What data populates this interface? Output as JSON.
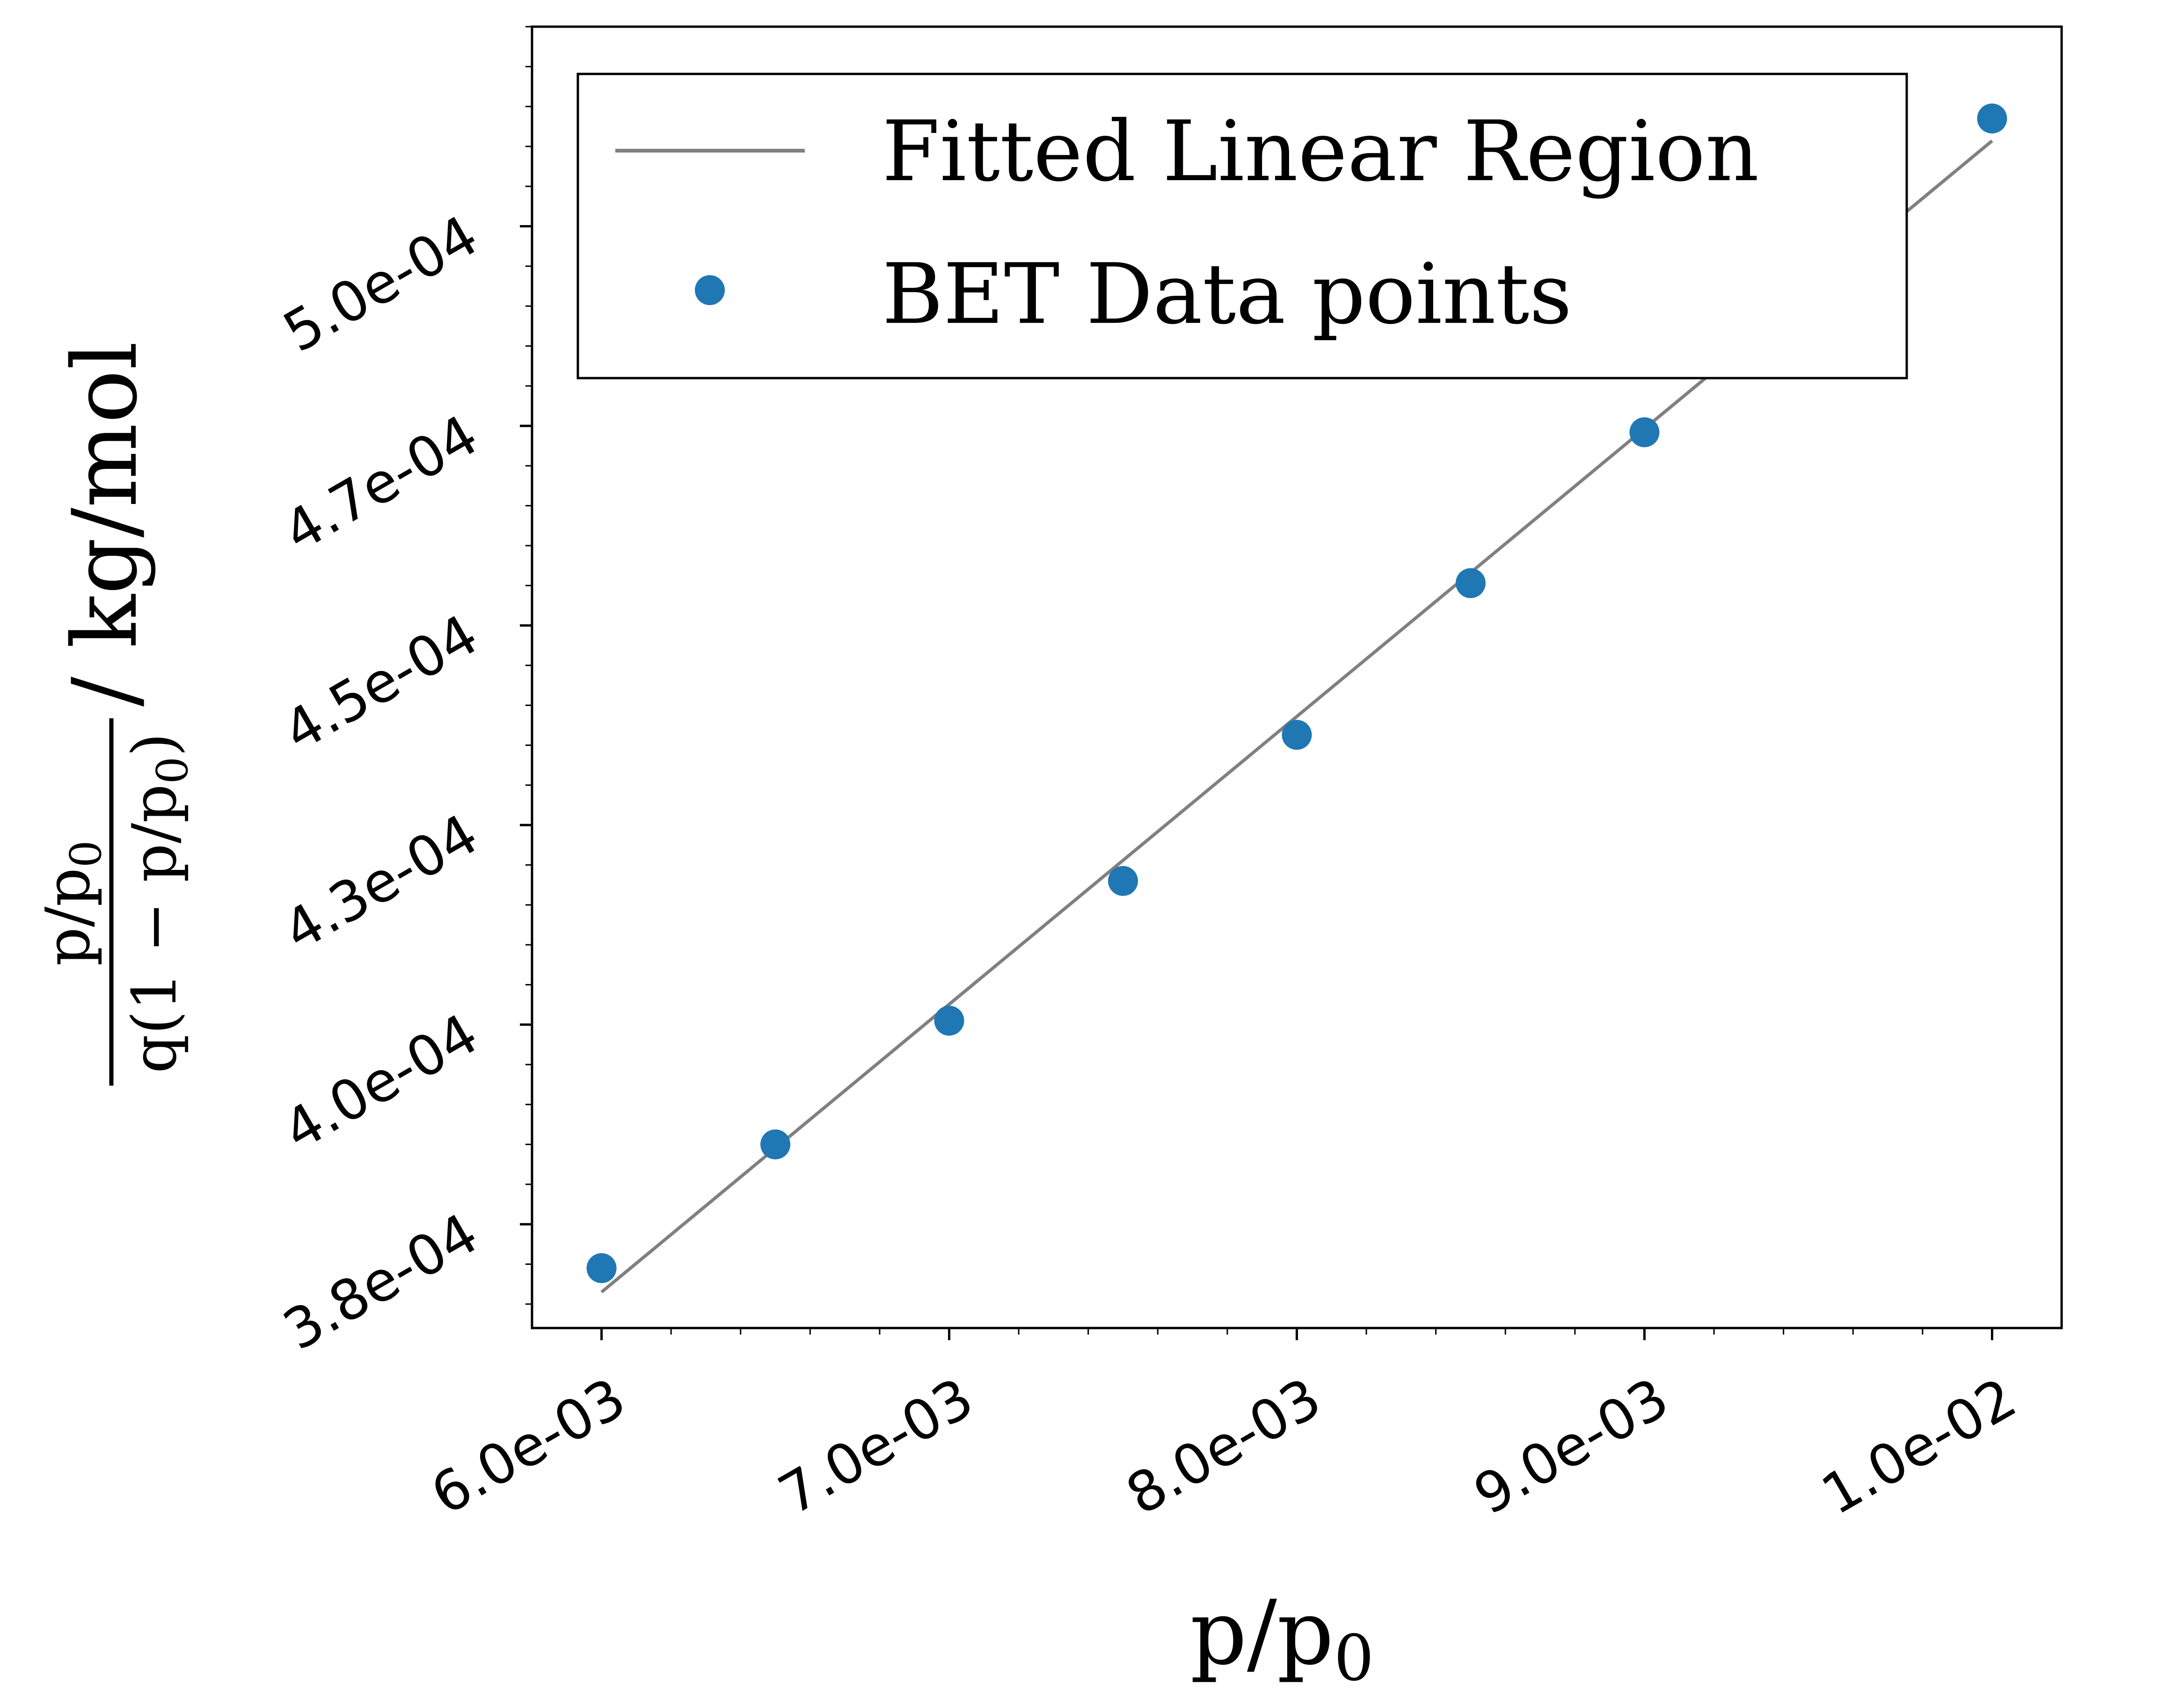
{
  "chart_data": {
    "type": "scatter",
    "xlabel": "p/p0",
    "ylabel": {
      "numerator": "p/p0",
      "denominator": "q(1 − p/p0)",
      "unit": "/ kg/mol"
    },
    "xlim": [
      0.0058,
      0.0102
    ],
    "ylim": [
      0.000362,
      0.000525
    ],
    "x_ticks": [
      0.006,
      0.007,
      0.008,
      0.009,
      0.01
    ],
    "x_tick_labels": [
      "6.0e-03",
      "7.0e-03",
      "8.0e-03",
      "9.0e-03",
      "1.0e-02"
    ],
    "y_ticks": [
      0.000375,
      0.0004,
      0.000425,
      0.00045,
      0.000475,
      0.0005
    ],
    "y_tick_labels": [
      "3.8e-04",
      "4.0e-04",
      "4.3e-04",
      "4.5e-04",
      "4.7e-04",
      "5.0e-04"
    ],
    "grid": false,
    "legend_position": "top-left",
    "series": [
      {
        "name": "Fitted Linear Region",
        "kind": "line",
        "color": "#808080",
        "x": [
          0.006,
          0.01
        ],
        "y": [
          0.0003665,
          0.0005107
        ]
      },
      {
        "name": "BET Data points",
        "kind": "scatter",
        "color": "#1f77b4",
        "x": [
          0.006,
          0.0065,
          0.007,
          0.0075,
          0.008,
          0.0085,
          0.009,
          0.01
        ],
        "y": [
          0.0003695,
          0.000385,
          0.0004005,
          0.000418,
          0.0004363,
          0.0004553,
          0.0004742,
          0.0005135
        ]
      }
    ]
  }
}
